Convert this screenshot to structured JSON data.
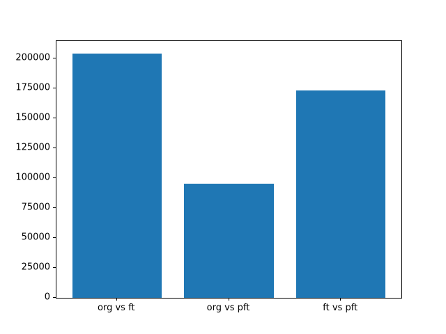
{
  "figure": {
    "background": "#ffffff"
  },
  "chart_data": {
    "type": "bar",
    "categories": [
      "org vs ft",
      "org vs pft",
      "ft vs pft"
    ],
    "values": [
      204400,
      95500,
      173200
    ],
    "title": "",
    "xlabel": "",
    "ylabel": "",
    "ylim": [
      0,
      214600
    ],
    "yticks": [
      0,
      25000,
      50000,
      75000,
      100000,
      125000,
      150000,
      175000,
      200000
    ],
    "ytick_labels": [
      "0",
      "25000",
      "50000",
      "75000",
      "100000",
      "125000",
      "150000",
      "175000",
      "200000"
    ],
    "grid": false,
    "legend": false,
    "bar_color": "#1f77b4",
    "axis_color": "#000000",
    "tick_label_color": "#000000"
  }
}
